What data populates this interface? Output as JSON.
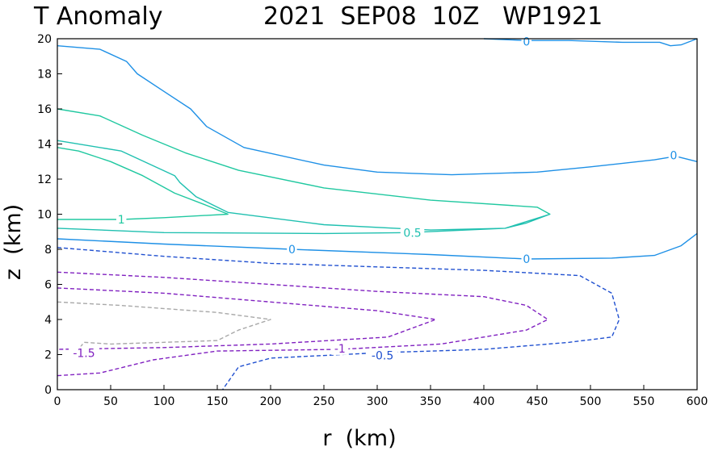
{
  "chart_data": {
    "type": "contour",
    "title_left": "T Anomaly",
    "title_right": "2021  SEP08  10Z   WP1921",
    "xlabel": "r  (km)",
    "ylabel": "z  (km)",
    "xlim": [
      0,
      600
    ],
    "ylim": [
      0,
      20
    ],
    "xticks": [
      "0",
      "50",
      "100",
      "150",
      "200",
      "250",
      "300",
      "350",
      "400",
      "450",
      "500",
      "550",
      "600"
    ],
    "yticks": [
      "0",
      "2",
      "4",
      "6",
      "8",
      "10",
      "12",
      "14",
      "16",
      "18",
      "20"
    ],
    "contours": [
      {
        "level": 0,
        "label": "0",
        "color": "#1e90e6",
        "dashed": false,
        "closed": false,
        "points": [
          [
            0,
            19.6
          ],
          [
            40,
            19.4
          ],
          [
            65,
            18.7
          ],
          [
            75,
            18.0
          ],
          [
            100,
            17.0
          ],
          [
            125,
            16.0
          ],
          [
            140,
            15.0
          ],
          [
            175,
            13.8
          ],
          [
            250,
            12.8
          ],
          [
            300,
            12.4
          ],
          [
            370,
            12.25
          ],
          [
            450,
            12.4
          ],
          [
            500,
            12.7
          ],
          [
            560,
            13.1
          ],
          [
            580,
            13.3
          ],
          [
            600,
            13.0
          ]
        ],
        "labels": [
          {
            "x": 578,
            "y": 13.35,
            "text": "0"
          }
        ]
      },
      {
        "level": 0,
        "label": "0",
        "color": "#1e90e6",
        "dashed": false,
        "closed": false,
        "points": [
          [
            400,
            20.0
          ],
          [
            440,
            19.9
          ],
          [
            480,
            19.9
          ],
          [
            530,
            19.8
          ],
          [
            565,
            19.8
          ],
          [
            575,
            19.6
          ],
          [
            585,
            19.65
          ],
          [
            600,
            20.0
          ]
        ],
        "labels": [
          {
            "x": 440,
            "y": 19.85,
            "text": "0"
          }
        ]
      },
      {
        "level": 0,
        "label": "0",
        "color": "#1e90e6",
        "dashed": false,
        "closed": false,
        "points": [
          [
            0,
            8.6
          ],
          [
            100,
            8.3
          ],
          [
            220,
            8.0
          ],
          [
            350,
            7.7
          ],
          [
            440,
            7.45
          ],
          [
            520,
            7.5
          ],
          [
            560,
            7.65
          ],
          [
            585,
            8.2
          ],
          [
            600,
            8.9
          ]
        ],
        "labels": [
          {
            "x": 220,
            "y": 8.0,
            "text": "0"
          },
          {
            "x": 440,
            "y": 7.45,
            "text": "0"
          }
        ]
      },
      {
        "level": 0.5,
        "label": "0.5",
        "color": "#20c0b0",
        "dashed": false,
        "closed": false,
        "points": [
          [
            0,
            14.2
          ],
          [
            60,
            13.6
          ],
          [
            110,
            12.2
          ],
          [
            115,
            11.8
          ],
          [
            130,
            11.0
          ],
          [
            160,
            10.1
          ],
          [
            250,
            9.4
          ],
          [
            350,
            9.1
          ],
          [
            420,
            9.2
          ],
          [
            440,
            9.5
          ],
          [
            462,
            10.0
          ],
          [
            420,
            9.2
          ],
          [
            330,
            8.95
          ],
          [
            250,
            8.9
          ],
          [
            100,
            8.95
          ],
          [
            0,
            9.2
          ]
        ],
        "labels": [
          {
            "x": 333,
            "y": 8.95,
            "text": "0.5"
          }
        ]
      },
      {
        "level": 1,
        "label": "1",
        "color": "#20c8a0",
        "dashed": false,
        "closed": false,
        "points": [
          [
            0,
            16.0
          ],
          [
            40,
            15.6
          ],
          [
            80,
            14.5
          ],
          [
            120,
            13.5
          ],
          [
            170,
            12.5
          ],
          [
            250,
            11.5
          ],
          [
            350,
            10.8
          ],
          [
            450,
            10.4
          ],
          [
            462,
            10.0
          ]
        ],
        "labels": []
      },
      {
        "level": 1,
        "label": "1",
        "color": "#20c8a0",
        "dashed": false,
        "closed": false,
        "points": [
          [
            0,
            9.7
          ],
          [
            60,
            9.7
          ],
          [
            100,
            9.8
          ],
          [
            160,
            10.0
          ],
          [
            140,
            10.5
          ],
          [
            110,
            11.2
          ],
          [
            80,
            12.2
          ],
          [
            50,
            13.0
          ],
          [
            20,
            13.6
          ],
          [
            0,
            13.8
          ]
        ],
        "labels": [
          {
            "x": 60,
            "y": 9.7,
            "text": "1"
          }
        ]
      },
      {
        "level": -0.5,
        "label": "-0.5",
        "color": "#2050d0",
        "dashed": true,
        "closed": false,
        "points": [
          [
            0,
            8.1
          ],
          [
            100,
            7.6
          ],
          [
            200,
            7.2
          ],
          [
            300,
            7.0
          ],
          [
            400,
            6.8
          ],
          [
            490,
            6.5
          ],
          [
            520,
            5.5
          ],
          [
            527,
            4.0
          ],
          [
            520,
            3.0
          ],
          [
            480,
            2.7
          ],
          [
            400,
            2.3
          ],
          [
            300,
            2.1
          ],
          [
            200,
            1.8
          ],
          [
            170,
            1.3
          ],
          [
            155,
            0.0
          ]
        ],
        "labels": [
          {
            "x": 305,
            "y": 1.95,
            "text": "-0.5"
          }
        ]
      },
      {
        "level": -1,
        "label": "-1",
        "color": "#8020c0",
        "dashed": true,
        "closed": false,
        "points": [
          [
            0,
            6.7
          ],
          [
            100,
            6.4
          ],
          [
            200,
            6.0
          ],
          [
            300,
            5.6
          ],
          [
            400,
            5.3
          ],
          [
            440,
            4.8
          ],
          [
            460,
            4.0
          ],
          [
            440,
            3.4
          ],
          [
            360,
            2.6
          ],
          [
            265,
            2.3
          ],
          [
            150,
            2.2
          ],
          [
            90,
            1.7
          ],
          [
            40,
            0.95
          ],
          [
            0,
            0.8
          ]
        ],
        "labels": [
          {
            "x": 265,
            "y": 2.35,
            "text": "-1"
          }
        ]
      },
      {
        "level": -1,
        "label": "-1",
        "color": "#8020c0",
        "dashed": true,
        "closed": false,
        "points": [
          [
            0,
            5.8
          ],
          [
            100,
            5.5
          ],
          [
            200,
            5.0
          ],
          [
            300,
            4.5
          ],
          [
            355,
            4.0
          ],
          [
            310,
            3.0
          ],
          [
            200,
            2.6
          ],
          [
            100,
            2.4
          ],
          [
            0,
            2.3
          ]
        ],
        "labels": []
      },
      {
        "level": -1.5,
        "label": "-1.5",
        "color": "#a8a8a8",
        "dashed": true,
        "closed": false,
        "points": [
          [
            0,
            5.0
          ],
          [
            60,
            4.8
          ],
          [
            150,
            4.4
          ],
          [
            200,
            4.0
          ],
          [
            170,
            3.4
          ],
          [
            150,
            2.8
          ],
          [
            100,
            2.7
          ],
          [
            50,
            2.6
          ],
          [
            25,
            2.7
          ],
          [
            20,
            2.3
          ]
        ],
        "labels": [
          {
            "x": 25,
            "y": 2.1,
            "text": "-1.5",
            "color": "#8020c0"
          }
        ]
      }
    ]
  }
}
